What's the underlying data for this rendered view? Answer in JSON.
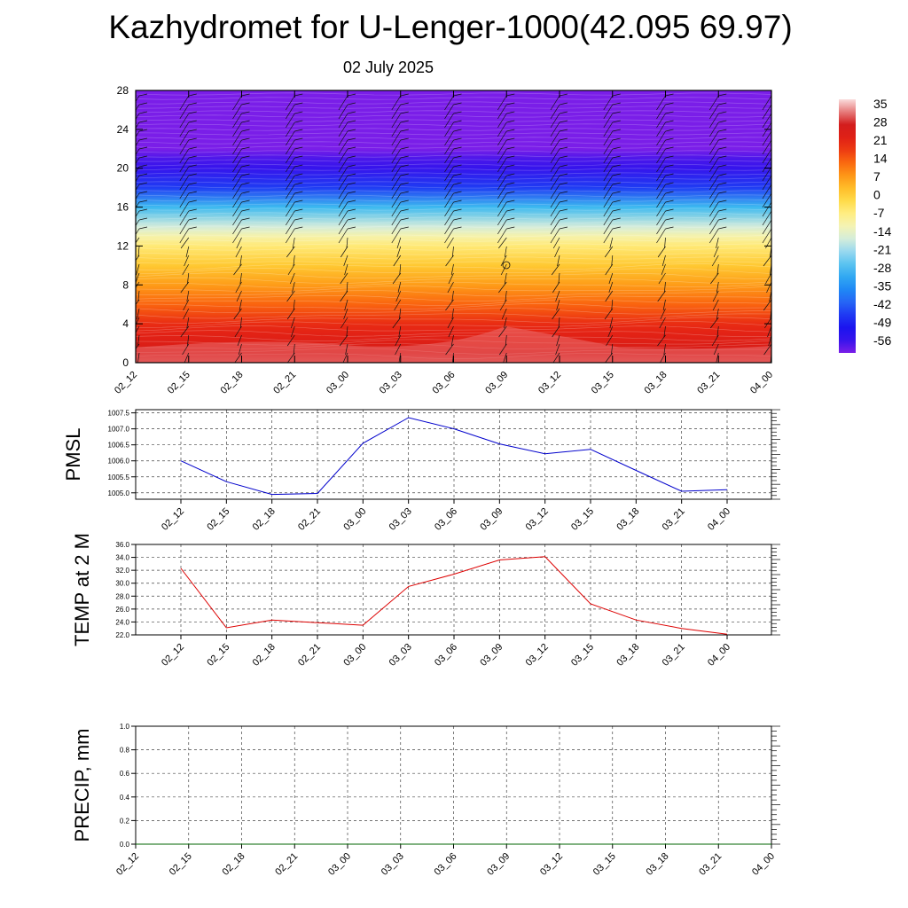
{
  "header": {
    "title": "Kazhydromet for U-Lenger-1000(42.095 69.97)",
    "subtitle": "02 July 2025"
  },
  "chart_data": [
    {
      "type": "heatmap",
      "panel": "cross-section",
      "title": "",
      "xlabel": "",
      "ylabel": "",
      "x_ticks": [
        "02_12",
        "02_15",
        "02_18",
        "02_21",
        "03_00",
        "03_03",
        "03_06",
        "03_09",
        "03_12",
        "03_15",
        "03_18",
        "03_21",
        "04_00"
      ],
      "y_ticks": [
        0,
        4,
        8,
        12,
        16,
        20,
        24,
        28
      ],
      "ylim": [
        0,
        28
      ],
      "colorbar_labels": [
        "35",
        "28",
        "21",
        "14",
        "7",
        "0",
        "-7",
        "-14",
        "-21",
        "-28",
        "-35",
        "-42",
        "-49",
        "-56"
      ],
      "colorbar_range": [
        -60,
        38
      ],
      "profile": {
        "heights": [
          0,
          1,
          2,
          3,
          4,
          6,
          8,
          10,
          12,
          13,
          14,
          16,
          18,
          20,
          21,
          22,
          24,
          28
        ],
        "values": [
          30,
          27,
          24,
          22,
          20,
          14,
          8,
          2,
          -5,
          -10,
          -16,
          -28,
          -45,
          -55,
          -57,
          -60,
          -60,
          -60
        ]
      },
      "wind_barbs": true,
      "grid": false,
      "colors": {
        "low": "#7a1ee8",
        "cold": "#1e1ef0",
        "mid": "#fff08c",
        "hot": "#d11e1e"
      }
    },
    {
      "type": "line",
      "panel": "pmsl",
      "ylabel": "PMSL",
      "x": [
        "02_12",
        "02_15",
        "02_18",
        "02_21",
        "03_00",
        "03_03",
        "03_06",
        "03_09",
        "03_12",
        "03_15",
        "03_18",
        "03_21",
        "04_00"
      ],
      "series": [
        {
          "values": [
            1006.0,
            1005.35,
            1004.95,
            1004.98,
            1006.55,
            1007.35,
            1007.0,
            1006.53,
            1006.22,
            1006.36,
            1005.7,
            1005.05,
            1005.1
          ],
          "color": "#0000cc"
        }
      ],
      "ylim": [
        1004.8,
        1007.6
      ],
      "y_ticks": [
        "1005.0",
        "1005.5",
        "1006.0",
        "1006.5",
        "1007.0",
        "1007.5"
      ],
      "grid": true
    },
    {
      "type": "line",
      "panel": "temp2m",
      "ylabel": "TEMP at 2 M",
      "x": [
        "02_12",
        "02_15",
        "02_18",
        "02_21",
        "03_00",
        "03_03",
        "03_06",
        "03_09",
        "03_12",
        "03_15",
        "03_18",
        "03_21",
        "04_00"
      ],
      "series": [
        {
          "values": [
            32.3,
            23.1,
            24.3,
            23.9,
            23.5,
            29.5,
            31.4,
            33.6,
            34.1,
            26.8,
            24.3,
            23.0,
            22.1
          ],
          "color": "#dd0000"
        }
      ],
      "ylim": [
        22.0,
        36.0
      ],
      "y_ticks": [
        "22.0",
        "24.0",
        "26.0",
        "28.0",
        "30.0",
        "32.0",
        "34.0",
        "36.0"
      ],
      "grid": true
    },
    {
      "type": "line",
      "panel": "precip",
      "ylabel": "PRECIP, mm",
      "x": [
        "02_12",
        "02_15",
        "02_18",
        "02_21",
        "03_00",
        "03_03",
        "03_06",
        "03_09",
        "03_12",
        "03_15",
        "03_18",
        "03_21",
        "04_00"
      ],
      "series": [
        {
          "values": [
            0,
            0,
            0,
            0,
            0,
            0,
            0,
            0,
            0,
            0,
            0,
            0,
            0
          ],
          "color": "#006600"
        }
      ],
      "ylim": [
        0.0,
        1.0
      ],
      "y_ticks": [
        "0.0",
        "0.2",
        "0.4",
        "0.6",
        "0.8",
        "1.0"
      ],
      "grid": true
    }
  ]
}
